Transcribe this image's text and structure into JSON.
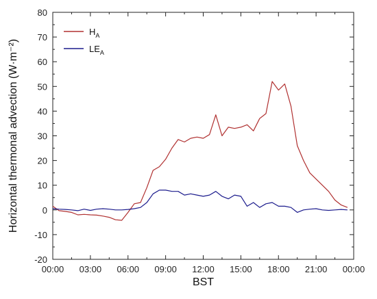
{
  "chart_data": {
    "type": "line",
    "xlabel": "BST",
    "ylabel": "Horizontal thermonal advection (W·m⁻²)",
    "xlim": [
      0,
      24
    ],
    "ylim": [
      -20,
      80
    ],
    "x_tick_labels": [
      "00:00",
      "03:00",
      "06:00",
      "09:00",
      "12:00",
      "15:00",
      "18:00",
      "21:00",
      "00:00"
    ],
    "y_ticks": [
      -20,
      -10,
      0,
      10,
      20,
      30,
      40,
      50,
      60,
      70,
      80
    ],
    "grid": false,
    "legend_position": "top-left",
    "x": [
      0,
      0.5,
      1,
      1.5,
      2,
      2.5,
      3,
      3.5,
      4,
      4.5,
      5,
      5.5,
      6,
      6.5,
      7,
      7.5,
      8,
      8.5,
      9,
      9.5,
      10,
      10.5,
      11,
      11.5,
      12,
      12.5,
      13,
      13.5,
      14,
      14.5,
      15,
      15.5,
      16,
      16.5,
      17,
      17.5,
      18,
      18.5,
      19,
      19.5,
      20,
      20.5,
      21,
      21.5,
      22,
      22.5,
      23,
      23.5
    ],
    "series": [
      {
        "name": "H",
        "name_sub": "A",
        "color": "#b03030",
        "values": [
          1.5,
          -0.3,
          -0.6,
          -1.0,
          -2.0,
          -1.8,
          -2.0,
          -2.1,
          -2.5,
          -3.0,
          -4.0,
          -4.2,
          -1.0,
          2.5,
          3.0,
          9.0,
          16.0,
          17.5,
          20.5,
          25.0,
          28.5,
          27.5,
          29.0,
          29.5,
          29.0,
          30.5,
          38.5,
          30.0,
          33.5,
          33.0,
          33.5,
          34.5,
          32.0,
          37.0,
          39.0,
          52.0,
          48.5,
          51.0,
          42.0,
          26.0,
          20.0,
          15.0,
          12.5,
          10.0,
          7.5,
          4.0,
          2.0,
          1.0
        ]
      },
      {
        "name": "LE",
        "name_sub": "A",
        "color": "#1a1a8c",
        "values": [
          0.5,
          0.3,
          0.2,
          0.0,
          -0.3,
          0.3,
          -0.2,
          0.3,
          0.5,
          0.3,
          0.0,
          0.0,
          0.2,
          0.5,
          1.0,
          3.0,
          6.5,
          8.0,
          8.0,
          7.5,
          7.5,
          6.0,
          6.5,
          6.0,
          5.5,
          6.0,
          7.5,
          5.5,
          4.5,
          6.0,
          5.5,
          1.5,
          3.0,
          1.0,
          2.5,
          3.0,
          1.5,
          1.5,
          1.0,
          -1.0,
          0.0,
          0.3,
          0.5,
          0.0,
          -0.2,
          0.0,
          0.2,
          0.0
        ]
      }
    ]
  }
}
